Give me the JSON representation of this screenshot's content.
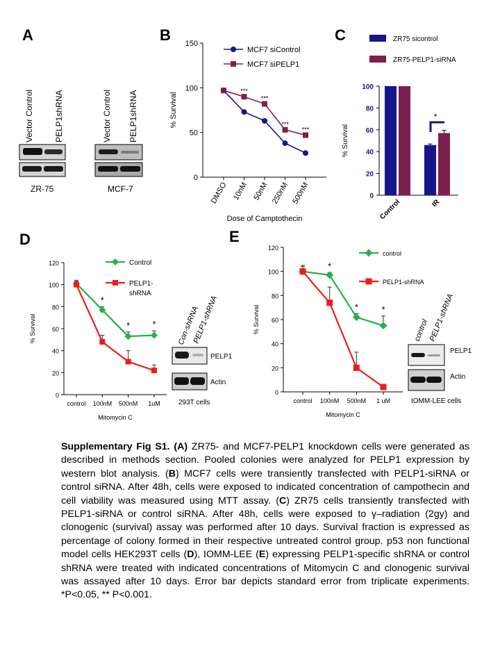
{
  "colors": {
    "navy": "#16168a",
    "maroon": "#7f1f4e",
    "green": "#22b14c",
    "red": "#ee1c1c",
    "black": "#000000"
  },
  "panel_letters": {
    "a": "A",
    "b": "B",
    "c": "C",
    "d": "D",
    "e": "E"
  },
  "panel_a": {
    "blots": [
      {
        "cell_line": "ZR-75",
        "lanes": [
          "Vector Control",
          "PELP1shRNA"
        ]
      },
      {
        "cell_line": "MCF-7",
        "lanes": [
          "Vector Control",
          "PELP1shRNA"
        ]
      }
    ]
  },
  "panel_d_blot": {
    "lanes": [
      "Con-shRNA",
      "PELP1-shRNA"
    ],
    "bands": [
      "PELP1",
      "Actin"
    ],
    "cells": "293T cells"
  },
  "panel_e_blot": {
    "lanes": [
      "control",
      "PELP1-shRNA"
    ],
    "bands": [
      "PELP1",
      "Actin"
    ],
    "cells": "IOMM-LEE cells"
  },
  "caption": {
    "title": "Supplementary Fig S1.",
    "a": "A",
    "t1": " ZR75- and MCF7-PELP1 knockdown cells were generated as described in methods section. Pooled colonies were analyzed for PELP1 expression by western blot analysis. (",
    "b": "B",
    "t2": ") MCF7 cells were transiently transfected with PELP1-siRNA or control siRNA. After 48h, cells were exposed to indicated concentration of campothecin and cell viability was measured using MTT assay. (",
    "c": "C",
    "t3": ") ZR75 cells transiently transfected with PELP1-siRNA or control siRNA. After 48h, cells were exposed to γ–radiation (2gy) and clonogenic (survival) assay was performed after 10 days. Survival fraction is expressed as percentage of colony formed in their respective untreated control group. p53 non functional model cells HEK293T cells (",
    "d": "D",
    "t4": "), IOMM-LEE (",
    "e": "E",
    "t5": ") expressing PELP1-specific shRNA or control shRNA were treated with indicated concentrations of Mitomycin C and clonogenic survival was assayed after 10 days. Error bar depicts standard error from triplicate experiments. *P<0.05, ** P<0.001."
  },
  "chart_data": [
    {
      "panel": "B",
      "type": "line",
      "categories": [
        "DMSO",
        "10nM",
        "50nM",
        "250nM",
        "500nM"
      ],
      "series": [
        {
          "name": "MCF7 siControl",
          "values": [
            97,
            73,
            63,
            38,
            27
          ],
          "color": "#16168a",
          "marker": "circle"
        },
        {
          "name": "MCF7 siPELP1",
          "values": [
            97,
            90,
            82,
            53,
            47
          ],
          "color": "#7f1f4e",
          "marker": "square"
        }
      ],
      "significance": [
        "",
        "***",
        "***",
        "***",
        "***"
      ],
      "xlabel": "Dose of Camptothecin",
      "ylabel": "% Survival",
      "ylim": [
        0,
        150
      ],
      "yticks": [
        "0",
        "50",
        "100",
        "150"
      ],
      "legend": "top-right"
    },
    {
      "panel": "C",
      "type": "bar",
      "categories": [
        "Control",
        "IR"
      ],
      "series": [
        {
          "name": "ZR75 sicontrol",
          "values": [
            100,
            46
          ],
          "errors": [
            0,
            1
          ],
          "color": "#16168a"
        },
        {
          "name": "ZR75-PELP1-siRNA",
          "values": [
            100,
            57
          ],
          "errors": [
            0,
            2.5
          ],
          "color": "#7f1f4e"
        }
      ],
      "significance": "*",
      "ylabel": "% Survival",
      "ylim": [
        0,
        100
      ],
      "yticks": [
        "0",
        "20",
        "40",
        "60",
        "80",
        "100"
      ],
      "legend": "top"
    },
    {
      "panel": "D",
      "type": "line",
      "categories": [
        "control",
        "100nM",
        "500nM",
        "1uM"
      ],
      "series": [
        {
          "name": "Control",
          "values": [
            101,
            77,
            53,
            54
          ],
          "errors": [
            3,
            3,
            4,
            4
          ],
          "color": "#22b14c",
          "marker": "diamond"
        },
        {
          "name": "PELP1-shRNA",
          "values": [
            100,
            48,
            30,
            22
          ],
          "errors": [
            3,
            6,
            10,
            5
          ],
          "color": "#ee1c1c",
          "marker": "square"
        }
      ],
      "significance": [
        "",
        "*",
        "*",
        "*"
      ],
      "xlabel": "Mitomycin C",
      "ylabel": "% Survival",
      "ylim": [
        0,
        120
      ],
      "yticks": [
        "0",
        "20",
        "40",
        "60",
        "80",
        "100",
        "120"
      ],
      "legend": "top-right"
    },
    {
      "panel": "E",
      "type": "line",
      "categories": [
        "control",
        "100nM",
        "500nM",
        "1 uM"
      ],
      "series": [
        {
          "name": "control",
          "values": [
            100,
            97,
            62,
            55
          ],
          "errors": [
            4,
            2,
            3,
            8
          ],
          "color": "#22b14c",
          "marker": "diamond"
        },
        {
          "name": "PELP1-shRNA",
          "values": [
            100,
            74,
            20,
            4
          ],
          "errors": [
            5,
            13,
            13,
            0
          ],
          "color": "#ee1c1c",
          "marker": "square"
        }
      ],
      "significance": [
        "",
        "*",
        "*",
        "*"
      ],
      "xlabel": "Mitomycin C",
      "ylabel": "% Survival",
      "ylim": [
        0,
        120
      ],
      "yticks": [
        "0",
        "20",
        "40",
        "60",
        "80",
        "100",
        "120"
      ],
      "legend": "top-right"
    }
  ]
}
